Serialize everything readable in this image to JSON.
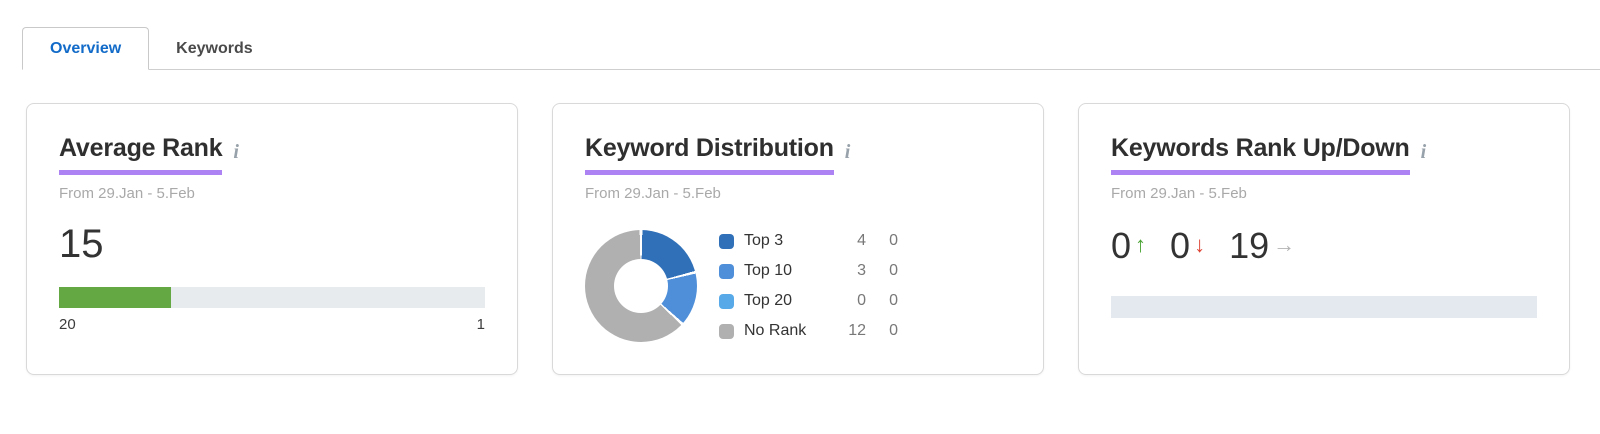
{
  "tabs": {
    "overview": "Overview",
    "keywords": "Keywords"
  },
  "info_icon_glyph": "i",
  "colors": {
    "tab_active_text": "#126bc8",
    "title_underline": "#ad82f2",
    "rank_bar_fill": "#64a843",
    "rank_bar_track": "#e7ebee",
    "updown_bar": "#e3e9ee"
  },
  "cards": {
    "average_rank": {
      "title": "Average Rank",
      "date_range": "From 29.Jan - 5.Feb",
      "value": "15",
      "scale_start": "20",
      "scale_end": "1",
      "bar_percent": 26.3
    },
    "keyword_distribution": {
      "title": "Keyword Distribution",
      "date_range": "From 29.Jan - 5.Feb",
      "legend": [
        {
          "label": "Top 3",
          "value": "4",
          "change": "0",
          "color": "#3070b8"
        },
        {
          "label": "Top 10",
          "value": "3",
          "change": "0",
          "color": "#4f8fd9"
        },
        {
          "label": "Top 20",
          "value": "0",
          "change": "0",
          "color": "#57a9e8"
        },
        {
          "label": "No Rank",
          "value": "12",
          "change": "0",
          "color": "#b0b0b0"
        }
      ]
    },
    "keywords_rank_up_down": {
      "title": "Keywords Rank Up/Down",
      "date_range": "From 29.Jan - 5.Feb",
      "stats": [
        {
          "name": "rank-up",
          "value": "0",
          "direction": "up",
          "glyph": "↑",
          "color": "#4aa234"
        },
        {
          "name": "rank-down",
          "value": "0",
          "direction": "down",
          "glyph": "↓",
          "color": "#dd4333"
        },
        {
          "name": "rank-unchanged",
          "value": "19",
          "direction": "unchanged",
          "glyph": "→",
          "color": "#b3b3b3"
        }
      ]
    }
  },
  "chart_data": {
    "type": "pie",
    "donut": true,
    "title": "Keyword Distribution",
    "categories": [
      "Top 3",
      "Top 10",
      "Top 20",
      "No Rank"
    ],
    "values": [
      4,
      3,
      0,
      12
    ],
    "colors": [
      "#3070b8",
      "#4f8fd9",
      "#57a9e8",
      "#b0b0b0"
    ],
    "legend_position": "right",
    "start_angle_deg": 0,
    "clockwise": true
  }
}
